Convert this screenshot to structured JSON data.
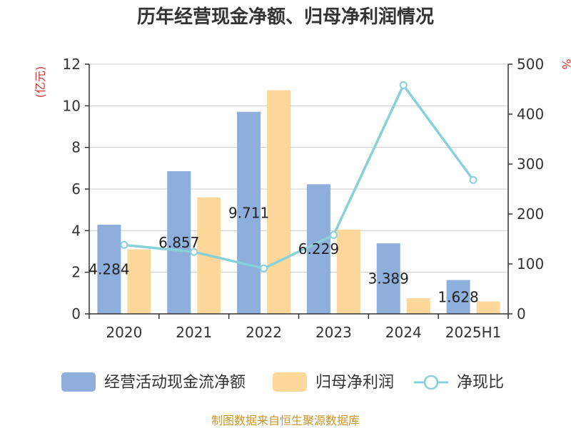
{
  "chart_data": {
    "type": "bar",
    "title": "历年经营现金净额、归母净利润情况",
    "categories": [
      "2020",
      "2021",
      "2022",
      "2023",
      "2024",
      "2025H1"
    ],
    "y_left": {
      "unit": "(亿元)",
      "min": 0,
      "max": 12,
      "ticks": [
        0,
        2,
        4,
        6,
        8,
        10,
        12
      ]
    },
    "y_right": {
      "unit": "%",
      "min": 0,
      "max": 500,
      "ticks": [
        0,
        100,
        200,
        300,
        400,
        500
      ]
    },
    "grid": true,
    "legend_position": "bottom",
    "series": [
      {
        "name": "经营活动现金流净额",
        "type": "bar",
        "axis": "left",
        "color": "#8eaedb",
        "values": [
          4.284,
          6.857,
          9.711,
          6.229,
          3.389,
          1.628
        ],
        "labels": [
          "4.284",
          "6.857",
          "9.711",
          "6.229",
          "3.389",
          "1.628"
        ]
      },
      {
        "name": "归母净利润",
        "type": "bar",
        "axis": "left",
        "color": "#fdd89a",
        "values": [
          3.1,
          5.6,
          10.75,
          4.05,
          0.75,
          0.6
        ]
      },
      {
        "name": "净现比",
        "type": "line",
        "axis": "right",
        "color": "#88d1d8",
        "values": [
          138,
          124,
          91,
          158,
          458,
          268
        ]
      }
    ],
    "source": "制图数据来自恒生聚源数据库"
  }
}
